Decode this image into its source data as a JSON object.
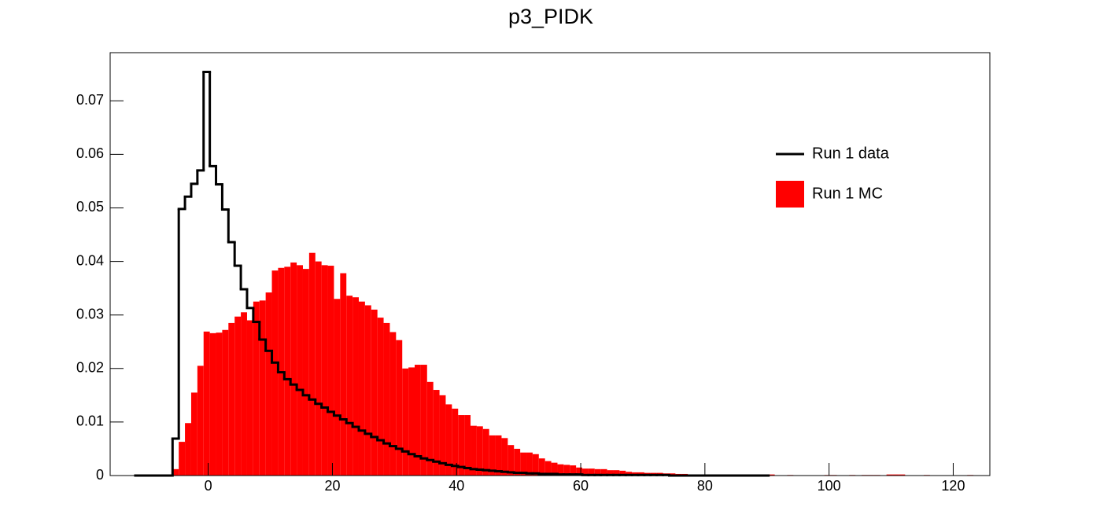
{
  "chart_data": {
    "type": "histogram",
    "title": "p3_PIDK",
    "bins": [
      -11.75,
      -10.75,
      -9.75,
      -8.75,
      -7.75,
      -6.75,
      -5.75,
      -4.75,
      -3.75,
      -2.75,
      -1.75,
      -0.75,
      0.25,
      1.25,
      2.25,
      3.25,
      4.25,
      5.25,
      6.25,
      7.25,
      8.25,
      9.25,
      10.25,
      11.25,
      12.25,
      13.25,
      14.25,
      15.25,
      16.25,
      17.25,
      18.25,
      19.25,
      20.25,
      21.25,
      22.25,
      23.25,
      24.25,
      25.25,
      26.25,
      27.25,
      28.25,
      29.25,
      30.25,
      31.25,
      32.25,
      33.25,
      34.25,
      35.25,
      36.25,
      37.25,
      38.25,
      39.25,
      40.25,
      41.25,
      42.25,
      43.25,
      44.25,
      45.25,
      46.25,
      47.25,
      48.25,
      49.25,
      50.25,
      51.25,
      52.25,
      53.25,
      54.25,
      55.25,
      56.25,
      57.25,
      58.25,
      59.25,
      60.25,
      61.25,
      62.25,
      63.25,
      64.25,
      65.25,
      66.25,
      67.25,
      68.25,
      69.25,
      70.25,
      71.25,
      72.25,
      73.25,
      74.25,
      75.25,
      76.25,
      77.25,
      78.25,
      79.25,
      80.25,
      81.25,
      82.25,
      83.25,
      84.25,
      85.25,
      86.25,
      87.25,
      88.25,
      89.25,
      90.25,
      91.25,
      92.25,
      93.25,
      94.25,
      95.25,
      96.25,
      97.25,
      98.25,
      99.25,
      100.25,
      101.25,
      102.25,
      103.25,
      104.25,
      105.25,
      106.25,
      107.25,
      108.25,
      109.25,
      110.25,
      111.25,
      112.25,
      113.25,
      114.25,
      115.25,
      116.25,
      117.25,
      118.25,
      119.25,
      120.25,
      121.25,
      122.25,
      123.25
    ],
    "series": [
      {
        "name": "Run 1 MC",
        "color": "#ff0000",
        "style": "fill",
        "values": [
          0,
          0,
          0,
          0,
          0,
          0,
          0.0012,
          0.0063,
          0.0098,
          0.0155,
          0.0205,
          0.0269,
          0.0266,
          0.0267,
          0.0272,
          0.0285,
          0.0297,
          0.0305,
          0.029,
          0.0325,
          0.0327,
          0.0342,
          0.0383,
          0.0388,
          0.039,
          0.0398,
          0.0393,
          0.0386,
          0.0416,
          0.04,
          0.0393,
          0.0392,
          0.033,
          0.0378,
          0.0336,
          0.0333,
          0.0325,
          0.0318,
          0.031,
          0.0295,
          0.0285,
          0.0268,
          0.0253,
          0.02,
          0.0202,
          0.0207,
          0.0207,
          0.0175,
          0.016,
          0.015,
          0.0133,
          0.0125,
          0.0113,
          0.0113,
          0.0093,
          0.0092,
          0.0087,
          0.0075,
          0.0075,
          0.007,
          0.0057,
          0.005,
          0.0043,
          0.0043,
          0.004,
          0.0032,
          0.0027,
          0.0024,
          0.0021,
          0.002,
          0.0019,
          0.0015,
          0.0013,
          0.0013,
          0.0012,
          0.0012,
          0.001,
          0.001,
          0.0009,
          0.0007,
          0.0006,
          0.0006,
          0.0005,
          0.0005,
          0.0005,
          0.0004,
          0.0004,
          0.0003,
          0.0003,
          0.0002,
          0.0002,
          0.0002,
          0.0001,
          0.0001,
          0.0001,
          0.0001,
          0.0001,
          0,
          0,
          0,
          0,
          0,
          0.0002,
          0,
          0,
          0.0001,
          0,
          0,
          0,
          0,
          0,
          0.0001,
          0.0001,
          0,
          0,
          0.0001,
          0,
          0.0001,
          0.0001,
          0.0001,
          0,
          0.0002,
          0.0002,
          0.0002,
          0,
          0,
          0,
          0.0001,
          0,
          0,
          0,
          0,
          0,
          0,
          0.0001
        ]
      },
      {
        "name": "Run 1 data",
        "color": "#000000",
        "style": "step",
        "values": [
          0,
          0,
          0,
          0,
          0,
          0,
          0.0069,
          0.0498,
          0.0521,
          0.0545,
          0.057,
          0.0754,
          0.0578,
          0.0544,
          0.0497,
          0.0436,
          0.0392,
          0.0348,
          0.0313,
          0.0287,
          0.0254,
          0.0233,
          0.0211,
          0.0193,
          0.018,
          0.017,
          0.016,
          0.015,
          0.0142,
          0.0134,
          0.0127,
          0.0119,
          0.0112,
          0.0105,
          0.0098,
          0.0091,
          0.0084,
          0.0078,
          0.0072,
          0.0066,
          0.006,
          0.0055,
          0.005,
          0.0045,
          0.004,
          0.0036,
          0.0032,
          0.0029,
          0.0026,
          0.0023,
          0.002,
          0.0018,
          0.0016,
          0.0014,
          0.0012,
          0.0011,
          0.001,
          0.0009,
          0.0008,
          0.0007,
          0.0006,
          0.0005,
          0.0005,
          0.0004,
          0.0004,
          0.0003,
          0.0003,
          0.0003,
          0.0002,
          0.0002,
          0.0002,
          0.0002,
          0.0001,
          0.0001,
          0.0001,
          0.0001,
          0.0001,
          0.0001,
          0.0001,
          0.0001,
          0.0001,
          0.0001,
          0.0001,
          0.0001,
          0.0001,
          0.0001,
          0,
          0,
          0,
          0,
          0,
          0,
          0,
          0,
          0,
          0,
          0,
          0,
          0,
          0,
          0,
          0,
          null,
          null,
          null,
          null,
          null,
          null,
          null,
          null,
          null,
          null,
          null,
          null,
          null,
          null,
          null,
          null,
          null,
          null,
          null,
          null,
          null,
          null,
          null,
          null,
          null,
          null,
          null,
          null,
          null,
          null,
          null,
          null,
          null
        ]
      }
    ],
    "xlim": [
      -15.8,
      125.9
    ],
    "xticks": [
      0,
      20,
      40,
      60,
      80,
      100,
      120
    ],
    "ylim": [
      0,
      0.079
    ],
    "yticks": [
      0,
      0.01,
      0.02,
      0.03,
      0.04,
      0.05,
      0.06,
      0.07
    ],
    "legend": "upper right"
  }
}
